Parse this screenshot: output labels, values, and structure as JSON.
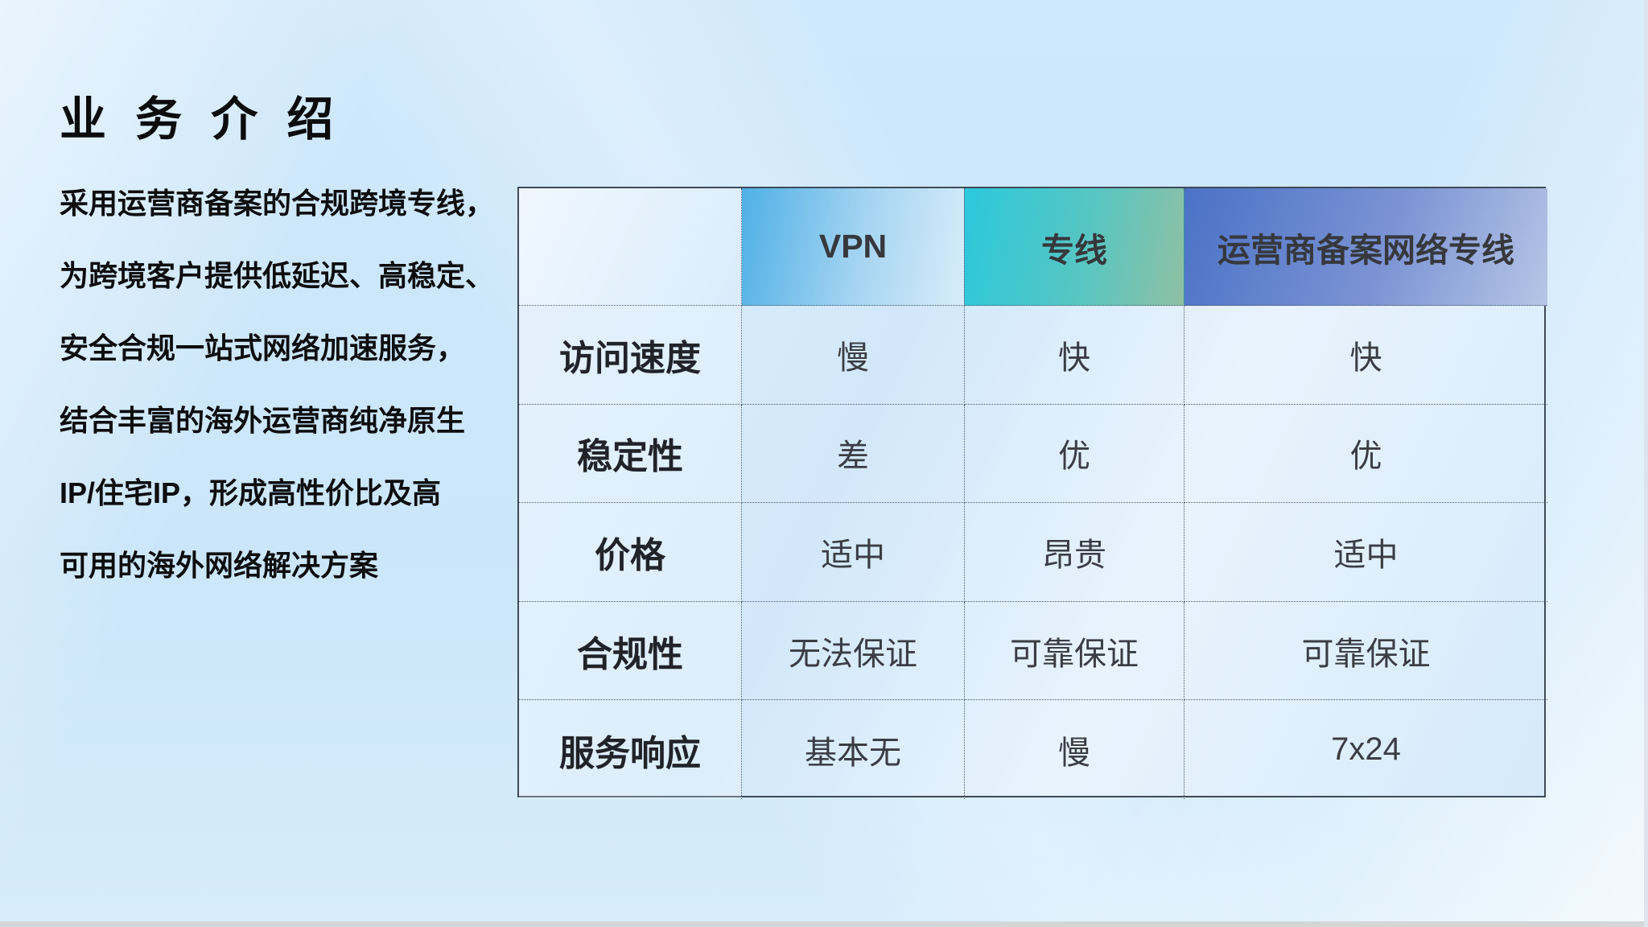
{
  "page": {
    "title": "业 务 介 绍"
  },
  "intro": {
    "lines": [
      "采用运营商备案的合规跨境专线，",
      "为跨境客户提供低延迟、高稳定、",
      "安全合规一站式网络加速服务，",
      "结合丰富的海外运营商纯净原生",
      "IP/住宅IP，形成高性价比及高",
      "可用的海外网络解决方案"
    ]
  },
  "table": {
    "headers": [
      "",
      "VPN",
      "专线",
      "运营商备案网络专线"
    ],
    "rows": [
      {
        "cells": [
          "访问速度",
          "慢",
          "快",
          "快"
        ]
      },
      {
        "cells": [
          "稳定性",
          "差",
          "优",
          "优"
        ]
      },
      {
        "cells": [
          "价格",
          "适中",
          "昂贵",
          "适中"
        ]
      },
      {
        "cells": [
          "合规性",
          "无法保证",
          "可靠保证",
          "可靠保证"
        ]
      },
      {
        "cells": [
          "服务响应",
          "基本无",
          "慢",
          "7x24"
        ]
      }
    ]
  },
  "colors": {
    "background": "#cbe6fa",
    "vpn_header_start": "#4fb0e6",
    "vpn_header_end": "#d8edfa",
    "line_header_start": "#2bc8dc",
    "line_header_end": "#8fc0a4",
    "carrier_header_start": "#4a72c6",
    "carrier_header_end": "#b6c6e6",
    "table_border": "#3e4a58",
    "title_text": "#0c0c0d",
    "header_text": "#36383c",
    "cell_text": "#3a3d43"
  }
}
